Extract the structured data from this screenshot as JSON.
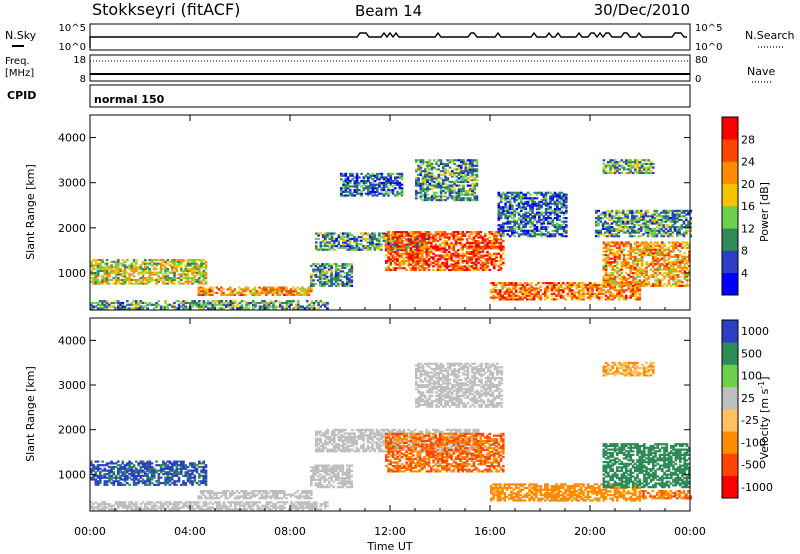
{
  "header": {
    "station": "Stokkseyri (fitACF)",
    "beam": "Beam 14",
    "date": "30/Dec/2010"
  },
  "sky_panel": {
    "left_label": "N.Sky",
    "right_label": "N.Search",
    "left_ticks": [
      "10^5",
      "10^0"
    ],
    "right_ticks": [
      "10^5",
      "10^0"
    ]
  },
  "freq_panel": {
    "left_label_1": "Freq.",
    "left_label_2": "[MHz]",
    "right_label": "Nave",
    "left_ticks": [
      "18",
      "8"
    ],
    "right_ticks": [
      "80",
      "0"
    ]
  },
  "cpid": {
    "label": "CPID",
    "mode": "normal 150"
  },
  "colors": {
    "power_scale": [
      "#0000ff",
      "#2d3fc6",
      "#2e8b57",
      "#6fcf4f",
      "#f5c400",
      "#ff8c00",
      "#ff4500",
      "#ff0000"
    ],
    "velocity_scale": [
      "#ff0000",
      "#ff4500",
      "#ff8c00",
      "#ffc060",
      "#bfbfbf",
      "#6fcf4f",
      "#2e8b57",
      "#2d3fc6"
    ]
  },
  "chart_data": [
    {
      "type": "heatmap",
      "name": "power",
      "ylabel": "Slant Range [km]",
      "ylim": [
        180,
        4500
      ],
      "yticks": [
        1000,
        2000,
        3000,
        4000
      ],
      "xlim": [
        0,
        24
      ],
      "colorbar": {
        "label": "Power [dB]",
        "ticks": [
          "4",
          "8",
          "12",
          "16",
          "20",
          "24",
          "28"
        ],
        "range": [
          0,
          30
        ]
      },
      "regions": [
        {
          "t0": 0.0,
          "t1": 4.6,
          "r0": 750,
          "r1": 1300,
          "v": 15
        },
        {
          "t0": 0.0,
          "t1": 9.5,
          "r0": 200,
          "r1": 380,
          "v": 10
        },
        {
          "t0": 4.3,
          "t1": 8.8,
          "r0": 500,
          "r1": 680,
          "v": 20
        },
        {
          "t0": 8.8,
          "t1": 10.5,
          "r0": 700,
          "r1": 1200,
          "v": 10
        },
        {
          "t0": 9.0,
          "t1": 13.5,
          "r0": 1500,
          "r1": 1900,
          "v": 10
        },
        {
          "t0": 11.8,
          "t1": 16.5,
          "r0": 1050,
          "r1": 1900,
          "v": 24
        },
        {
          "t0": 10.0,
          "t1": 12.5,
          "r0": 2700,
          "r1": 3200,
          "v": 7
        },
        {
          "t0": 13.0,
          "t1": 15.5,
          "r0": 2600,
          "r1": 3500,
          "v": 10
        },
        {
          "t0": 16.0,
          "t1": 22.0,
          "r0": 400,
          "r1": 800,
          "v": 22
        },
        {
          "t0": 16.3,
          "t1": 19.0,
          "r0": 1800,
          "r1": 2800,
          "v": 7
        },
        {
          "t0": 20.5,
          "t1": 24.0,
          "r0": 700,
          "r1": 1700,
          "v": 20
        },
        {
          "t0": 20.2,
          "t1": 24.0,
          "r0": 1800,
          "r1": 2400,
          "v": 10
        },
        {
          "t0": 20.5,
          "t1": 22.5,
          "r0": 3200,
          "r1": 3500,
          "v": 12
        }
      ]
    },
    {
      "type": "heatmap",
      "name": "velocity",
      "ylabel": "Slant Range [km]",
      "ylim": [
        180,
        4500
      ],
      "yticks": [
        1000,
        2000,
        3000,
        4000
      ],
      "xlim": [
        0,
        24
      ],
      "xticks": [
        "00:00",
        "04:00",
        "08:00",
        "12:00",
        "16:00",
        "20:00",
        "00:00"
      ],
      "xlabel": "Time UT",
      "colorbar": {
        "label": "Velocity [m s",
        "label_sup": "-1",
        "label_end": "]",
        "ticks": [
          "-1000",
          "-500",
          "-100",
          "-25",
          "25",
          "100",
          "500",
          "1000"
        ]
      },
      "regions": [
        {
          "t0": 0.0,
          "t1": 4.6,
          "r0": 750,
          "r1": 1300,
          "v": 600
        },
        {
          "t0": 0.0,
          "t1": 9.5,
          "r0": 200,
          "r1": 380,
          "v": 0
        },
        {
          "t0": 4.3,
          "t1": 8.8,
          "r0": 450,
          "r1": 650,
          "v": 0
        },
        {
          "t0": 8.8,
          "t1": 10.5,
          "r0": 700,
          "r1": 1200,
          "v": 0
        },
        {
          "t0": 9.0,
          "t1": 15.5,
          "r0": 1500,
          "r1": 2000,
          "v": 0
        },
        {
          "t0": 11.8,
          "t1": 16.5,
          "r0": 1050,
          "r1": 1900,
          "v": -500
        },
        {
          "t0": 13.0,
          "t1": 16.5,
          "r0": 2500,
          "r1": 3500,
          "v": 0
        },
        {
          "t0": 16.0,
          "t1": 22.0,
          "r0": 400,
          "r1": 800,
          "v": -200
        },
        {
          "t0": 20.5,
          "t1": 24.0,
          "r0": 700,
          "r1": 1700,
          "v": 300
        },
        {
          "t0": 22.0,
          "t1": 24.0,
          "r0": 450,
          "r1": 650,
          "v": -500
        },
        {
          "t0": 20.5,
          "t1": 22.5,
          "r0": 3200,
          "r1": 3500,
          "v": -100
        }
      ]
    }
  ]
}
